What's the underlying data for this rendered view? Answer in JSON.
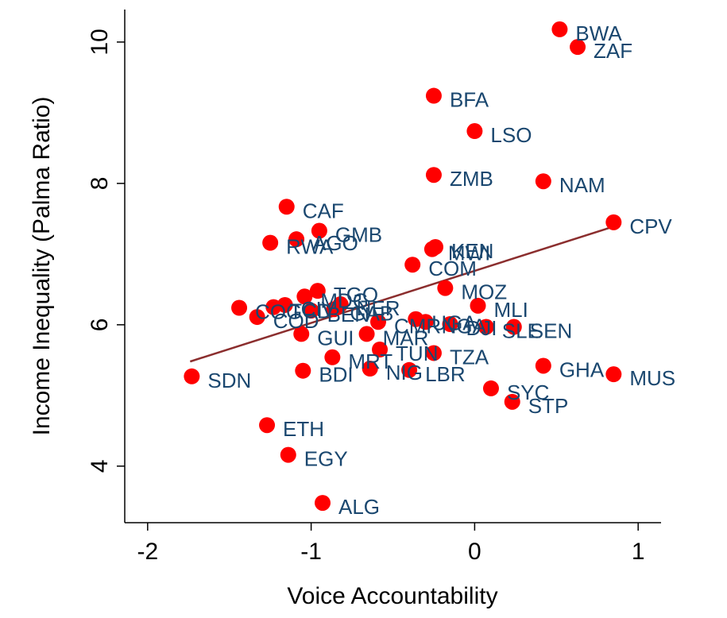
{
  "chart_data": {
    "type": "scatter",
    "x_label": "Voice Accountability",
    "y_label": "Income Inequality (Palma Ratio)",
    "xlim": [
      -2.14,
      1.14
    ],
    "ylim": [
      3.2,
      10.46
    ],
    "xticks": [
      -2,
      -1,
      0,
      1
    ],
    "yticks": [
      4,
      6,
      8,
      10
    ],
    "grid": false,
    "series": [
      {
        "color": "#ff0000",
        "label_color": "#1a476f",
        "labels": [
          "BWA",
          "ZAF",
          "BFA",
          "LSO",
          "ZMB",
          "NAM",
          "CPV",
          "CAF",
          "GMB",
          "RWA",
          "AGO",
          "KEN",
          "MWI",
          "COM",
          "MOZ",
          "TGO",
          "MLI",
          "SEN",
          "SLE",
          "GHA",
          "MUS",
          "SYC",
          "STP",
          "TZA",
          "TUN",
          "MRT",
          "NIG",
          "LBR",
          "BDI",
          "SDN",
          "ETH",
          "EGY",
          "ALG",
          "GUI",
          "MAR",
          "COG",
          "COD",
          "TCD",
          "CIV",
          "MDG",
          "BEN",
          "GAB",
          "NER",
          "CMR",
          "UGA",
          "NGA",
          "DJI"
        ],
        "x": [
          0.52,
          0.63,
          -0.25,
          0.0,
          -0.25,
          0.42,
          0.85,
          -1.15,
          -0.95,
          -1.25,
          -1.09,
          -0.24,
          -0.26,
          -0.38,
          -0.18,
          -0.96,
          0.02,
          0.24,
          0.07,
          0.42,
          0.85,
          0.1,
          0.23,
          -0.25,
          -0.58,
          -0.87,
          -0.64,
          -0.4,
          -1.05,
          -1.73,
          -1.27,
          -1.14,
          -0.93,
          -1.06,
          -0.66,
          -1.44,
          -1.33,
          -1.23,
          -1.16,
          -1.04,
          -1.0,
          -0.86,
          -0.82,
          -0.59,
          -0.36,
          -0.3,
          -0.15
        ],
        "values": [
          10.18,
          9.93,
          9.24,
          8.74,
          8.12,
          8.03,
          7.45,
          7.67,
          7.33,
          7.16,
          7.21,
          7.1,
          7.07,
          6.85,
          6.52,
          6.48,
          6.27,
          5.97,
          5.97,
          5.42,
          5.3,
          5.1,
          4.91,
          5.6,
          5.65,
          5.54,
          5.38,
          5.36,
          5.35,
          5.27,
          4.58,
          4.16,
          3.48,
          5.87,
          5.87,
          6.24,
          6.11,
          6.25,
          6.28,
          6.4,
          6.2,
          6.22,
          6.29,
          6.04,
          6.08,
          6.04,
          6.01
        ]
      }
    ],
    "fit_line": {
      "color": "#8b2e2e",
      "x": [
        -1.74,
        0.85
      ],
      "y": [
        5.48,
        7.39
      ]
    }
  }
}
